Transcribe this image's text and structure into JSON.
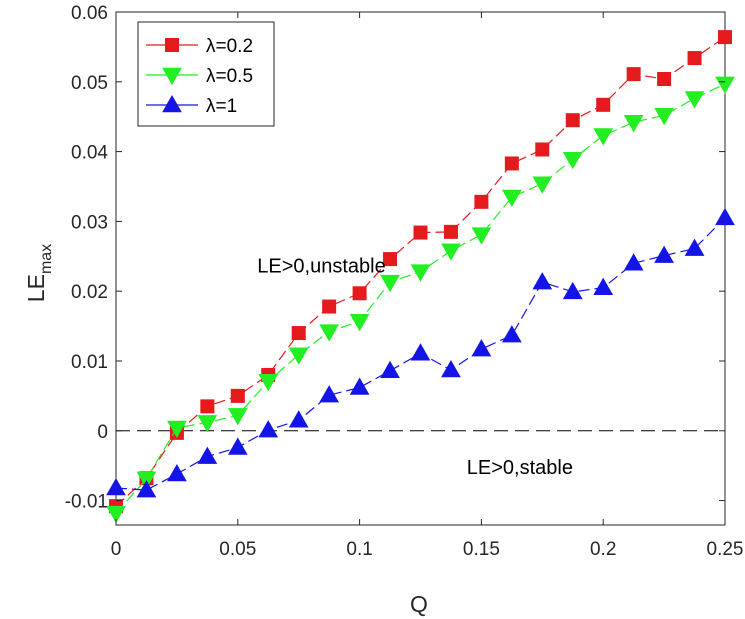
{
  "chart_data": {
    "type": "line",
    "xlabel": "Q",
    "ylabel": "LE",
    "ylabel_subscript": "max",
    "xlim": [
      0,
      0.25
    ],
    "ylim": [
      -0.0135,
      0.06
    ],
    "x_ticks": [
      0,
      0.05,
      0.1,
      0.15,
      0.2,
      0.25
    ],
    "x_tick_labels": [
      "0",
      "0.05",
      "0.1",
      "0.15",
      "0.2",
      "0.25"
    ],
    "y_ticks": [
      -0.01,
      0,
      0.01,
      0.02,
      0.03,
      0.04,
      0.05,
      0.06
    ],
    "y_tick_labels": [
      "-0.01",
      "0",
      "0.01",
      "0.02",
      "0.03",
      "0.04",
      "0.05",
      "0.06"
    ],
    "grid": false,
    "legend_position": "top-left",
    "reference_line": {
      "y": 0,
      "style": "dashed"
    },
    "annotations": [
      {
        "text": "LE>0,unstable",
        "x": 0.058,
        "y": 0.0227
      },
      {
        "text": "LE>0,stable",
        "x": 0.144,
        "y": -0.0062
      }
    ],
    "x": [
      0,
      0.0125,
      0.025,
      0.0375,
      0.05,
      0.0625,
      0.075,
      0.0875,
      0.1,
      0.1125,
      0.125,
      0.1375,
      0.15,
      0.1625,
      0.175,
      0.1875,
      0.2,
      0.2125,
      0.225,
      0.2375,
      0.25
    ],
    "series": [
      {
        "name": "λ=0.2",
        "color": "#e41a1c",
        "marker": "square",
        "values": [
          -0.0108,
          -0.0068,
          -0.0003,
          0.0035,
          0.005,
          0.008,
          0.014,
          0.0178,
          0.0197,
          0.0246,
          0.0284,
          0.0285,
          0.0328,
          0.0383,
          0.0403,
          0.0445,
          0.0467,
          0.0511,
          0.0504,
          0.0534,
          0.0564
        ]
      },
      {
        "name": "λ=0.5",
        "color": "#22ee22",
        "marker": "triangle-down",
        "values": [
          -0.0118,
          -0.0069,
          0.0004,
          0.0012,
          0.0022,
          0.0071,
          0.0109,
          0.0142,
          0.0157,
          0.0213,
          0.0228,
          0.0258,
          0.0281,
          0.0335,
          0.0354,
          0.0389,
          0.0423,
          0.0442,
          0.0452,
          0.0476,
          0.0497
        ]
      },
      {
        "name": "λ=1",
        "color": "#1414e6",
        "marker": "triangle-up",
        "values": [
          -0.0082,
          -0.0085,
          -0.0062,
          -0.0037,
          -0.0024,
          0.0001,
          0.0015,
          0.0051,
          0.0062,
          0.0086,
          0.0111,
          0.0087,
          0.0117,
          0.0137,
          0.0213,
          0.0199,
          0.0205,
          0.024,
          0.0251,
          0.0261,
          0.0305
        ]
      }
    ]
  }
}
